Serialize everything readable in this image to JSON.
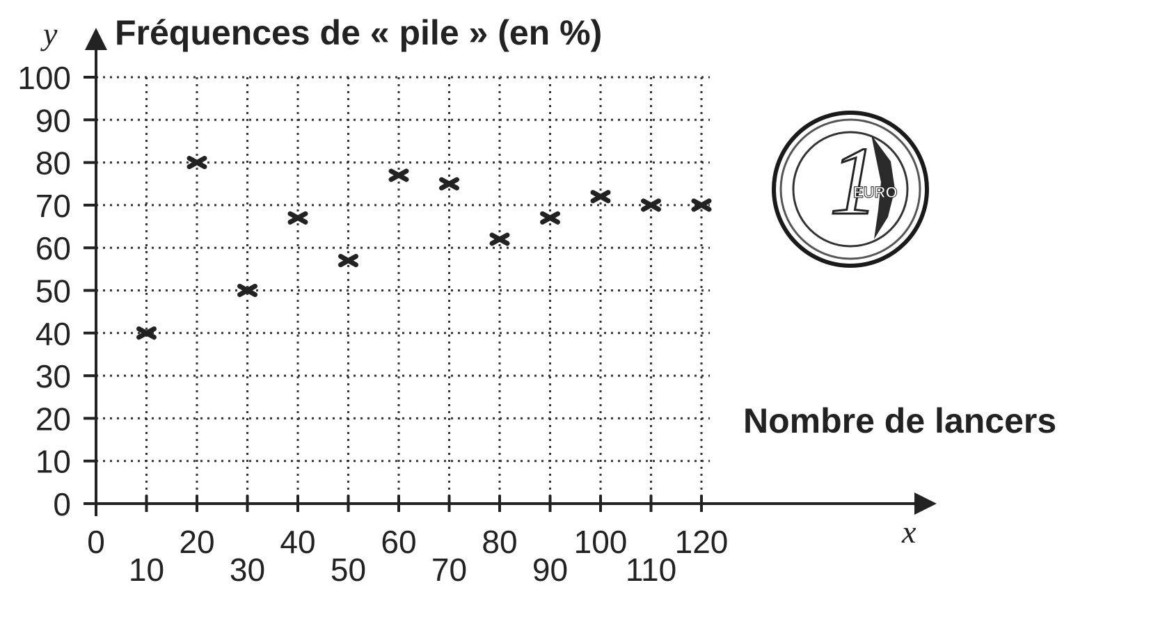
{
  "chart_data": {
    "type": "scatter",
    "title": "Fréquences de « pile » (en %)",
    "xlabel": "Nombre de lancers",
    "x_var": "x",
    "y_var": "y",
    "xlim": [
      0,
      120
    ],
    "ylim": [
      0,
      100
    ],
    "x_ticks": [
      "0",
      "10",
      "20",
      "30",
      "40",
      "50",
      "60",
      "70",
      "80",
      "90",
      "100",
      "110",
      "120"
    ],
    "y_ticks": [
      "0",
      "10",
      "20",
      "30",
      "40",
      "50",
      "60",
      "70",
      "80",
      "90",
      "100"
    ],
    "grid": true,
    "marker": "cross",
    "points": [
      {
        "x": 10,
        "y": 40
      },
      {
        "x": 20,
        "y": 80
      },
      {
        "x": 30,
        "y": 50
      },
      {
        "x": 40,
        "y": 67
      },
      {
        "x": 50,
        "y": 57
      },
      {
        "x": 60,
        "y": 77
      },
      {
        "x": 70,
        "y": 75
      },
      {
        "x": 80,
        "y": 62
      },
      {
        "x": 90,
        "y": 67
      },
      {
        "x": 100,
        "y": 72
      },
      {
        "x": 110,
        "y": 70
      },
      {
        "x": 120,
        "y": 70
      }
    ]
  },
  "coin": {
    "icon": "euro-coin-icon",
    "denomination": "1",
    "inscription": "EURO"
  }
}
